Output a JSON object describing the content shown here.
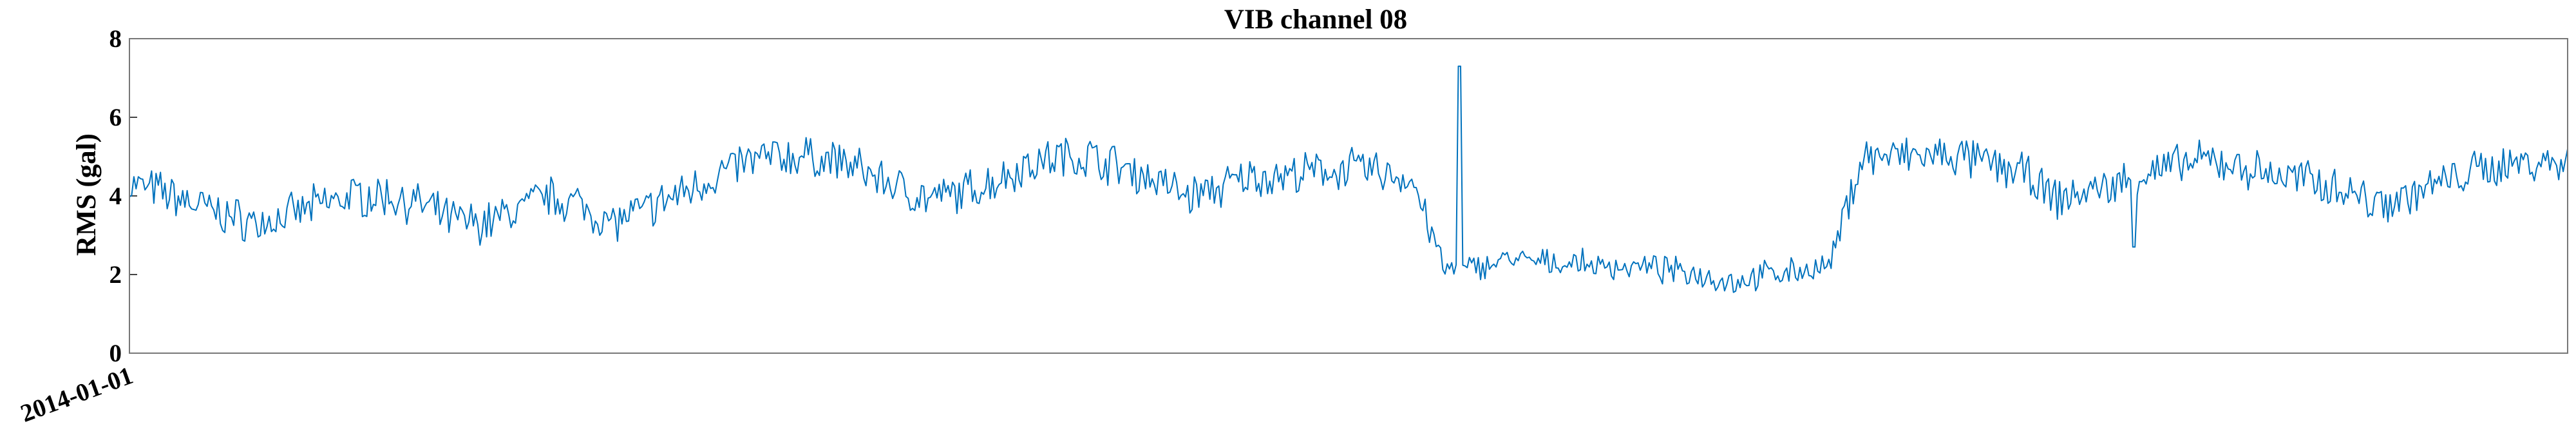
{
  "chart_data": {
    "type": "line",
    "title": "VIB channel 08",
    "xlabel": "",
    "ylabel": "RMS (gal)",
    "ylim": [
      0,
      8
    ],
    "yticks": [
      0,
      2,
      4,
      6,
      8
    ],
    "xticks": [
      "2014-01-01"
    ],
    "grid": false,
    "series": [
      {
        "color": "#0072BD",
        "y_segment_means": [
          4.3,
          4.1,
          3.8,
          3.5,
          3.3,
          3.5,
          3.8,
          4.0,
          4.0,
          3.8,
          3.4,
          3.3,
          3.6,
          4.0,
          3.8,
          3.3,
          3.6,
          4.0,
          4.4,
          4.8,
          5.0,
          5.0,
          4.9,
          4.6,
          4.2,
          3.9,
          4.1,
          4.4,
          4.8,
          5.0,
          5.0,
          4.7,
          4.4,
          4.0,
          4.2,
          4.5,
          4.5,
          4.6,
          4.7,
          4.6,
          4.4,
          2.1,
          2.2,
          2.4,
          2.3,
          2.3,
          2.2,
          2.2,
          2.1,
          2.0,
          1.8,
          2.0,
          2.1,
          2.2,
          5.0,
          5.0,
          5.0,
          5.0,
          4.8,
          4.6,
          3.9,
          4.1,
          4.3,
          4.6,
          4.8,
          4.9,
          4.7,
          4.5,
          4.4,
          4.2,
          3.8,
          4.0,
          4.3,
          4.6,
          4.8,
          4.9,
          4.8
        ],
        "peak": {
          "x_fraction": 0.5455,
          "y": 7.3
        },
        "dip": {
          "x_fraction": 0.8222,
          "y": 2.7
        }
      }
    ]
  }
}
